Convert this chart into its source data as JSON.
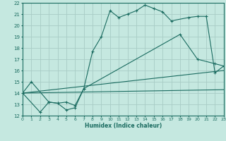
{
  "xlabel": "Humidex (Indice chaleur)",
  "bg_color": "#c5e8e0",
  "grid_color": "#a8ccc5",
  "line_color": "#1a6b60",
  "xlim": [
    0,
    23
  ],
  "ylim": [
    12,
    22
  ],
  "xticks": [
    0,
    1,
    2,
    3,
    4,
    5,
    6,
    7,
    8,
    9,
    10,
    11,
    12,
    13,
    14,
    15,
    16,
    17,
    18,
    19,
    20,
    21,
    22,
    23
  ],
  "yticks": [
    12,
    13,
    14,
    15,
    16,
    17,
    18,
    19,
    20,
    21,
    22
  ],
  "curve1_x": [
    0,
    2,
    3,
    4,
    5,
    6,
    7,
    8,
    9,
    10,
    11,
    12,
    13,
    14,
    15,
    16,
    17,
    19,
    20,
    21,
    22,
    23
  ],
  "curve1_y": [
    14.0,
    12.3,
    13.2,
    13.1,
    12.5,
    12.7,
    14.4,
    17.7,
    19.0,
    21.3,
    20.7,
    21.0,
    21.3,
    21.8,
    21.5,
    21.2,
    20.4,
    20.7,
    20.8,
    20.8,
    15.8,
    16.4
  ],
  "curve2_x": [
    0,
    1,
    3,
    4,
    5,
    6,
    7,
    18,
    20,
    22,
    23
  ],
  "curve2_y": [
    14.0,
    15.0,
    13.2,
    13.1,
    13.2,
    12.9,
    14.4,
    19.2,
    17.0,
    16.6,
    16.4
  ],
  "line3_x": [
    0,
    23
  ],
  "line3_y": [
    14.0,
    16.0
  ],
  "line4_x": [
    0,
    23
  ],
  "line4_y": [
    14.0,
    14.3
  ]
}
